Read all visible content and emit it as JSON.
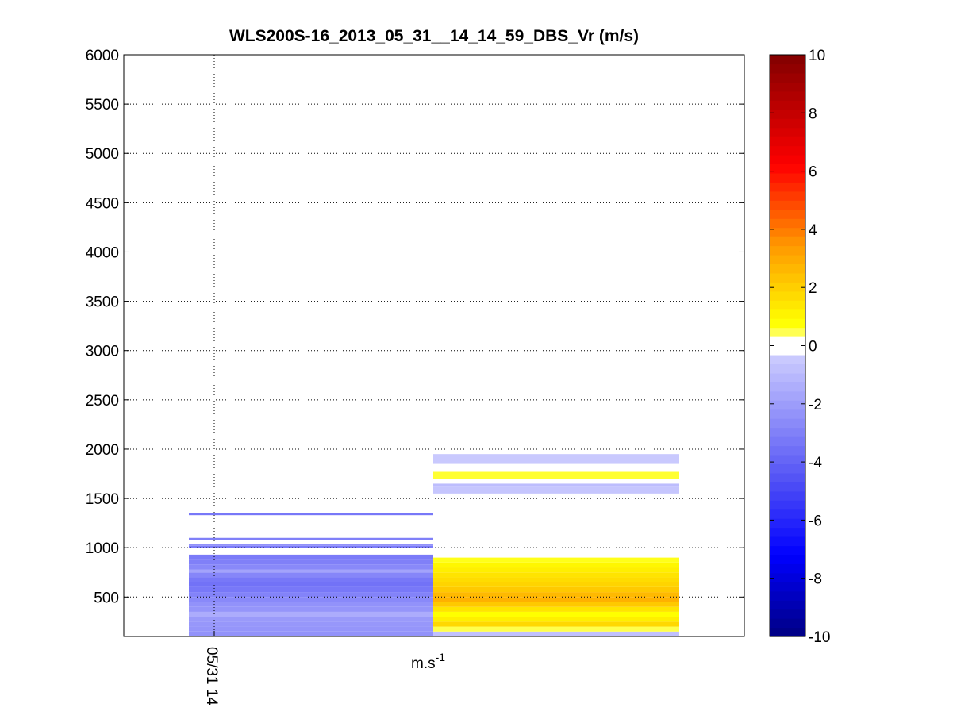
{
  "chart_data": {
    "type": "heatmap",
    "title": "WLS200S-16_2013_05_31__14_14_59_DBS_Vr (m/s)",
    "xlabel": "m.s",
    "xlabel_sup": "-1",
    "ylabel": "",
    "ylim": [
      100,
      6000
    ],
    "yticks": [
      500,
      1000,
      1500,
      2000,
      2500,
      3000,
      3500,
      4000,
      4500,
      5000,
      5500,
      6000
    ],
    "xtick_labels": [
      "05/31 14"
    ],
    "grid": true,
    "colorbar": {
      "min": -10,
      "max": 10,
      "ticks": [
        -10,
        -8,
        -6,
        -4,
        -2,
        0,
        2,
        4,
        6,
        8,
        10
      ],
      "colormap": "blue-white-red"
    },
    "columns": [
      {
        "cells": [
          {
            "alt": [
              100,
              150
            ],
            "vr": -2.4
          },
          {
            "alt": [
              150,
              200
            ],
            "vr": -2.3
          },
          {
            "alt": [
              200,
              250
            ],
            "vr": -2.2
          },
          {
            "alt": [
              250,
              300
            ],
            "vr": -2.1
          },
          {
            "alt": [
              300,
              350
            ],
            "vr": -1.5
          },
          {
            "alt": [
              350,
              400
            ],
            "vr": -2.3
          },
          {
            "alt": [
              400,
              450
            ],
            "vr": -2.4
          },
          {
            "alt": [
              450,
              500
            ],
            "vr": -2.7
          },
          {
            "alt": [
              500,
              550
            ],
            "vr": -2.9
          },
          {
            "alt": [
              550,
              600
            ],
            "vr": -3.3
          },
          {
            "alt": [
              600,
              650
            ],
            "vr": -3.5
          },
          {
            "alt": [
              650,
              700
            ],
            "vr": -3.3
          },
          {
            "alt": [
              700,
              750
            ],
            "vr": -2.8
          },
          {
            "alt": [
              750,
              780
            ],
            "vr": -1.8
          },
          {
            "alt": [
              780,
              830
            ],
            "vr": -2.7
          },
          {
            "alt": [
              830,
              880
            ],
            "vr": -3.0
          },
          {
            "alt": [
              880,
              930
            ],
            "vr": -3.2
          },
          {
            "alt": [
              1000,
              1020
            ],
            "vr": -3.2
          },
          {
            "alt": [
              1020,
              1040
            ],
            "vr": -2.4
          },
          {
            "alt": [
              1080,
              1100
            ],
            "vr": -3.0
          },
          {
            "alt": [
              1330,
              1350
            ],
            "vr": -3.3
          }
        ]
      },
      {
        "cells": [
          {
            "alt": [
              100,
              150
            ],
            "vr": -0.8
          },
          {
            "alt": [
              150,
              200
            ],
            "vr": 0.5
          },
          {
            "alt": [
              200,
              250
            ],
            "vr": 1.8
          },
          {
            "alt": [
              250,
              300
            ],
            "vr": 1.2
          },
          {
            "alt": [
              300,
              350
            ],
            "vr": 0.8
          },
          {
            "alt": [
              350,
              400
            ],
            "vr": 1.5
          },
          {
            "alt": [
              400,
              450
            ],
            "vr": 2.2
          },
          {
            "alt": [
              450,
              500
            ],
            "vr": 2.8
          },
          {
            "alt": [
              500,
              550
            ],
            "vr": 2.6
          },
          {
            "alt": [
              550,
              600
            ],
            "vr": 2.2
          },
          {
            "alt": [
              600,
              650
            ],
            "vr": 1.9
          },
          {
            "alt": [
              650,
              700
            ],
            "vr": 1.7
          },
          {
            "alt": [
              700,
              750
            ],
            "vr": 1.5
          },
          {
            "alt": [
              750,
              800
            ],
            "vr": 1.2
          },
          {
            "alt": [
              800,
              850
            ],
            "vr": 1.0
          },
          {
            "alt": [
              850,
              900
            ],
            "vr": 0.7
          },
          {
            "alt": [
              1550,
              1620
            ],
            "vr": -0.6
          },
          {
            "alt": [
              1620,
              1650
            ],
            "vr": -0.9
          },
          {
            "alt": [
              1700,
              1770
            ],
            "vr": 0.6
          },
          {
            "alt": [
              1850,
              1950
            ],
            "vr": -0.5
          }
        ]
      }
    ]
  }
}
